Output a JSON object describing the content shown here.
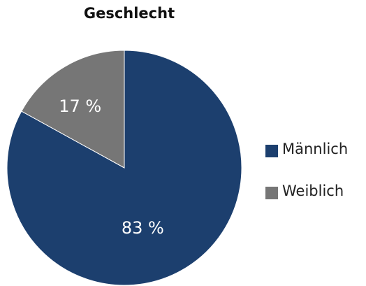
{
  "chart_data": {
    "type": "pie",
    "title": "Geschlecht",
    "categories": [
      "Männlich",
      "Weiblich"
    ],
    "values": [
      83,
      17
    ],
    "value_labels": [
      "83 %",
      "17 %"
    ],
    "colors": [
      "#1c3f6e",
      "#767676"
    ],
    "legend": "right"
  }
}
